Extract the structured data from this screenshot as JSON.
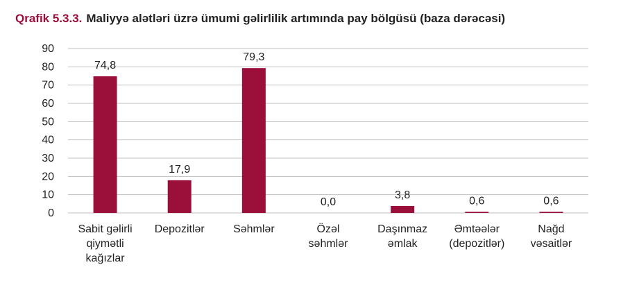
{
  "header": {
    "number": "Qrafik 5.3.3.",
    "text": "Maliyyə alətləri üzrə ümumi gəlirlilik artımında pay bölgüsü (baza dərəcəsi)"
  },
  "colors": {
    "bar": "#9b0f3b",
    "title_accent": "#9b0f3b",
    "grid": "#bfbfbf",
    "text": "#222222"
  },
  "chart_data": {
    "type": "bar",
    "title": "Maliyyə alətləri üzrə ümumi gəlirlilik artımında pay bölgüsü (baza dərəcəsi)",
    "categories": [
      [
        "Sabit gəlirli",
        "qiymətli",
        "kağızlar"
      ],
      [
        "Depozitlər"
      ],
      [
        "Səhmlər"
      ],
      [
        "Özəl",
        "səhmlər"
      ],
      [
        "Daşınmaz",
        "əmlak"
      ],
      [
        "Əmtəələr",
        "(depozitlər)"
      ],
      [
        "Nağd",
        "vəsaitlər"
      ]
    ],
    "values": [
      74.8,
      17.9,
      79.3,
      0.0,
      3.8,
      0.6,
      0.6
    ],
    "data_labels": [
      "74,8",
      "17,9",
      "79,3",
      "0,0",
      "3,8",
      "0,6",
      "0,6"
    ],
    "yticks": [
      "0",
      "10",
      "20",
      "30",
      "40",
      "50",
      "60",
      "70",
      "80",
      "90"
    ],
    "ylim": [
      0,
      90
    ],
    "grid": true,
    "legend": "none",
    "xlabel": "",
    "ylabel": ""
  }
}
